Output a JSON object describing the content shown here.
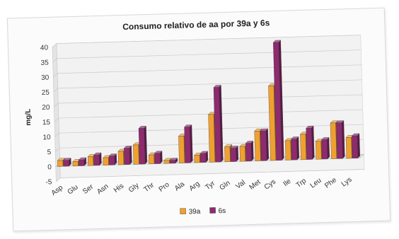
{
  "chart_data": {
    "type": "bar",
    "title": "Consumo relativo de aa por 39a y 6s",
    "xlabel": "",
    "ylabel": "mg/L",
    "ylim": [
      -5,
      40
    ],
    "yticks": [
      -5,
      0,
      5,
      10,
      15,
      20,
      25,
      30,
      35,
      40
    ],
    "grid": true,
    "legend_position": "bottom",
    "style": "3d-clustered-bar",
    "categories": [
      "Asp",
      "Glu",
      "Ser",
      "Asn",
      "His",
      "Gly",
      "Thr",
      "Pro",
      "Ala",
      "Arg",
      "Tyr",
      "Gln",
      "Val",
      "Met",
      "Cys",
      "Ile",
      "Trp",
      "Leu",
      "Phe",
      "Lys"
    ],
    "series": [
      {
        "name": "39a",
        "color": "#F0A030",
        "values": [
          2,
          1.5,
          3,
          2.5,
          4.5,
          6.5,
          3,
          1,
          9,
          2.5,
          16,
          5,
          5,
          10,
          25,
          6.5,
          8.5,
          6,
          12,
          7
        ]
      },
      {
        "name": "6s",
        "color": "#8E2A6E",
        "values": [
          2,
          2,
          3.5,
          3,
          5.5,
          12,
          3.5,
          1,
          12,
          3,
          25,
          4.5,
          6,
          10,
          39.5,
          7,
          10.5,
          6.5,
          12,
          7.5
        ]
      }
    ]
  }
}
